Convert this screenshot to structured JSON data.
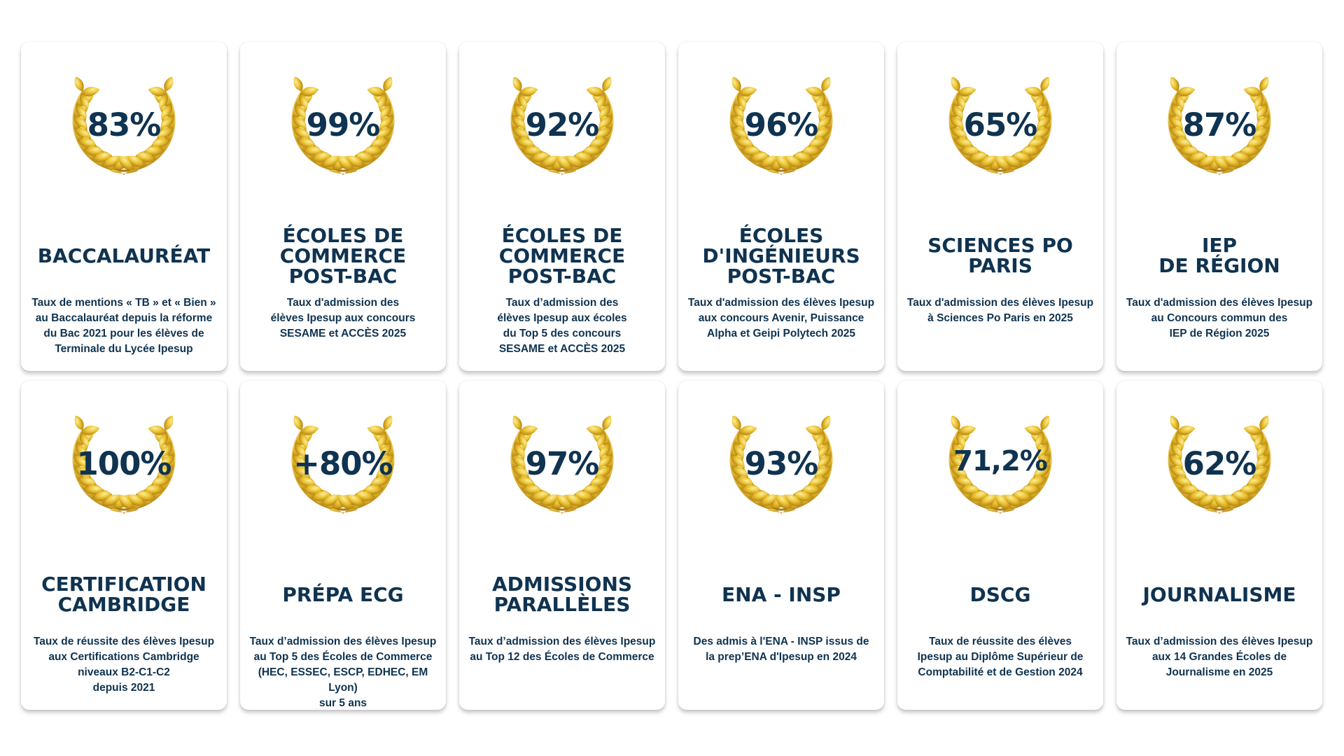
{
  "colors": {
    "text": "#0f3350",
    "laurel_light": "#f7e07a",
    "laurel_mid": "#e3b320",
    "laurel_dark": "#a9760b",
    "card_background": "#ffffff"
  },
  "icons": {
    "laurel": "laurel-wreath-icon"
  },
  "cards": [
    {
      "percent": "83%",
      "title": "BACCALAURÉAT",
      "description": "Taux de mentions « TB » et « Bien »\nau Baccalauréat depuis la réforme\ndu Bac 2021 pour les élèves de\nTerminale du Lycée Ipesup"
    },
    {
      "percent": "99%",
      "title": "ÉCOLES DE\nCOMMERCE\nPOST-BAC",
      "description": "Taux d'admission des\nélèves Ipesup aux concours\nSESAME et ACCÈS 2025"
    },
    {
      "percent": "92%",
      "title": "ÉCOLES DE\nCOMMERCE\nPOST-BAC",
      "description": "Taux d’admission des\nélèves Ipesup aux écoles\ndu Top 5 des concours\nSESAME et ACCÈS 2025"
    },
    {
      "percent": "96%",
      "title": "ÉCOLES\nD'INGÉNIEURS\nPOST-BAC",
      "description": "Taux d'admission des élèves Ipesup\naux concours Avenir, Puissance\nAlpha et Geipi Polytech 2025"
    },
    {
      "percent": "65%",
      "title": "SCIENCES PO\nPARIS",
      "description": "Taux d'admission des élèves Ipesup\nà Sciences Po Paris en 2025"
    },
    {
      "percent": "87%",
      "title": "IEP\nDE RÉGION",
      "description": "Taux d'admission des élèves Ipesup\nau Concours commun des\nIEP de Région 2025"
    },
    {
      "percent": "100%",
      "title": "CERTIFICATION\nCAMBRIDGE",
      "description": "Taux de réussite des élèves Ipesup\naux Certifications Cambridge\nniveaux B2-C1-C2\ndepuis 2021"
    },
    {
      "percent": "+80%",
      "title": "PRÉPA ECG",
      "description": "Taux d’admission des élèves Ipesup\nau Top 5 des Écoles de Commerce\n(HEC, ESSEC, ESCP, EDHEC, EM Lyon)\nsur 5 ans"
    },
    {
      "percent": "97%",
      "title": "ADMISSIONS\nPARALLÈLES",
      "description": "Taux d’admission des élèves Ipesup\nau Top 12 des Écoles de Commerce"
    },
    {
      "percent": "93%",
      "title": "ENA - INSP",
      "description": "Des admis à l'ENA - INSP issus de\nla prep’ENA d'Ipesup en 2024"
    },
    {
      "percent": "71,2%",
      "title": "DSCG",
      "description": "Taux de réussite des élèves\nIpesup au Diplôme Supérieur de\nComptabilité et de Gestion 2024"
    },
    {
      "percent": "62%",
      "title": "JOURNALISME",
      "description": "Taux d’admission des élèves Ipesup\naux 14 Grandes Écoles de\nJournalisme en 2025"
    }
  ]
}
